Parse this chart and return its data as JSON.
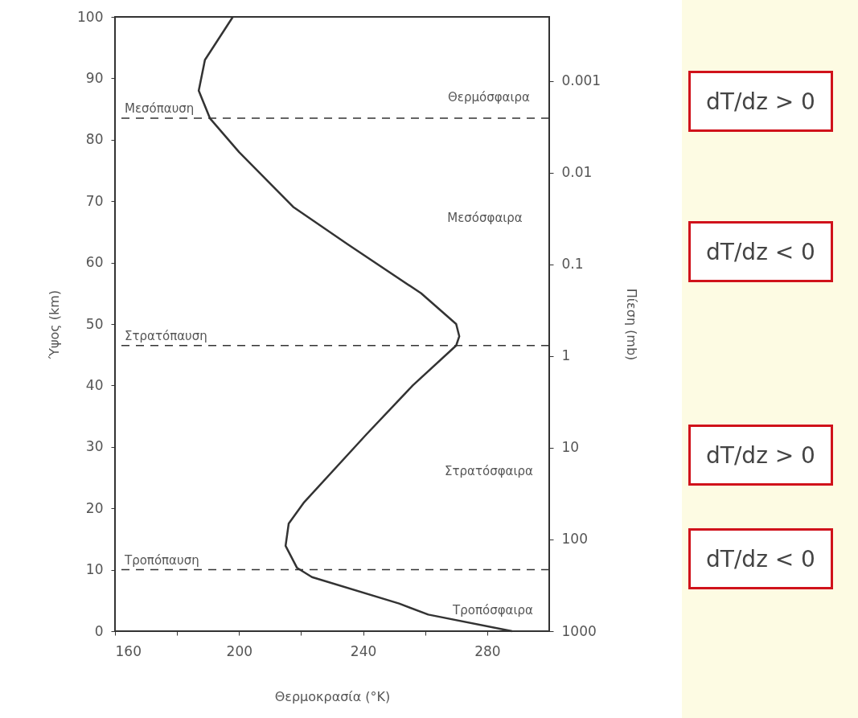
{
  "chart_data": {
    "type": "line",
    "xlabel": "Θερμοκρασία (°K)",
    "ylabel": "Ύψος (km)",
    "y2label": "Πίεση (mb)",
    "xlim": [
      160,
      300
    ],
    "xticks": [
      160,
      {
        "value": 180,
        "label": null
      },
      200,
      {
        "value": 220,
        "label": null
      },
      240,
      {
        "value": 260,
        "label": null
      },
      280
    ],
    "ylim": [
      0,
      100
    ],
    "yticks": [
      0,
      10,
      20,
      30,
      40,
      50,
      60,
      70,
      80,
      90,
      100
    ],
    "y2lim": [
      1000,
      0.0002
    ],
    "y2ticks": [
      1000,
      100,
      10,
      1,
      0.1,
      0.01,
      0.001
    ],
    "log": "y2",
    "series": [
      {
        "color": "#333333",
        "x": [
          288,
          261,
          251.6,
          223.5,
          218.7,
          215,
          216,
          221,
          241,
          256,
          270,
          271,
          270,
          258.7,
          235,
          217.6,
          200,
          190.6,
          187,
          189,
          198
        ],
        "values": [
          0,
          2.7,
          4.5,
          8.8,
          10.3,
          13.9,
          17.5,
          21,
          32,
          40,
          46.5,
          48,
          50,
          55,
          63,
          69,
          78,
          83.5,
          88,
          93,
          100
        ]
      }
    ],
    "ref_lines": [
      {
        "axis": "y",
        "value": 83.5,
        "label": "Μεσόπαυση",
        "line_style": "dashed"
      },
      {
        "axis": "y",
        "value": 46.5,
        "label": "Στρατόπαυση",
        "line_style": "dashed"
      },
      {
        "axis": "y",
        "value": 10,
        "label": "Τροπόπαυση",
        "line_style": "dashed"
      }
    ],
    "annotations": [
      "Θερμόσφαιρα",
      "Μεσόσφαιρα",
      "Στρατόσφαιρα",
      "Τροπόσφαιρα",
      "dT/dz > 0",
      "dT/dz < 0",
      "dT/dz > 0",
      "dT/dz < 0"
    ],
    "grid": false,
    "line_style": "solid",
    "marker": "none"
  }
}
